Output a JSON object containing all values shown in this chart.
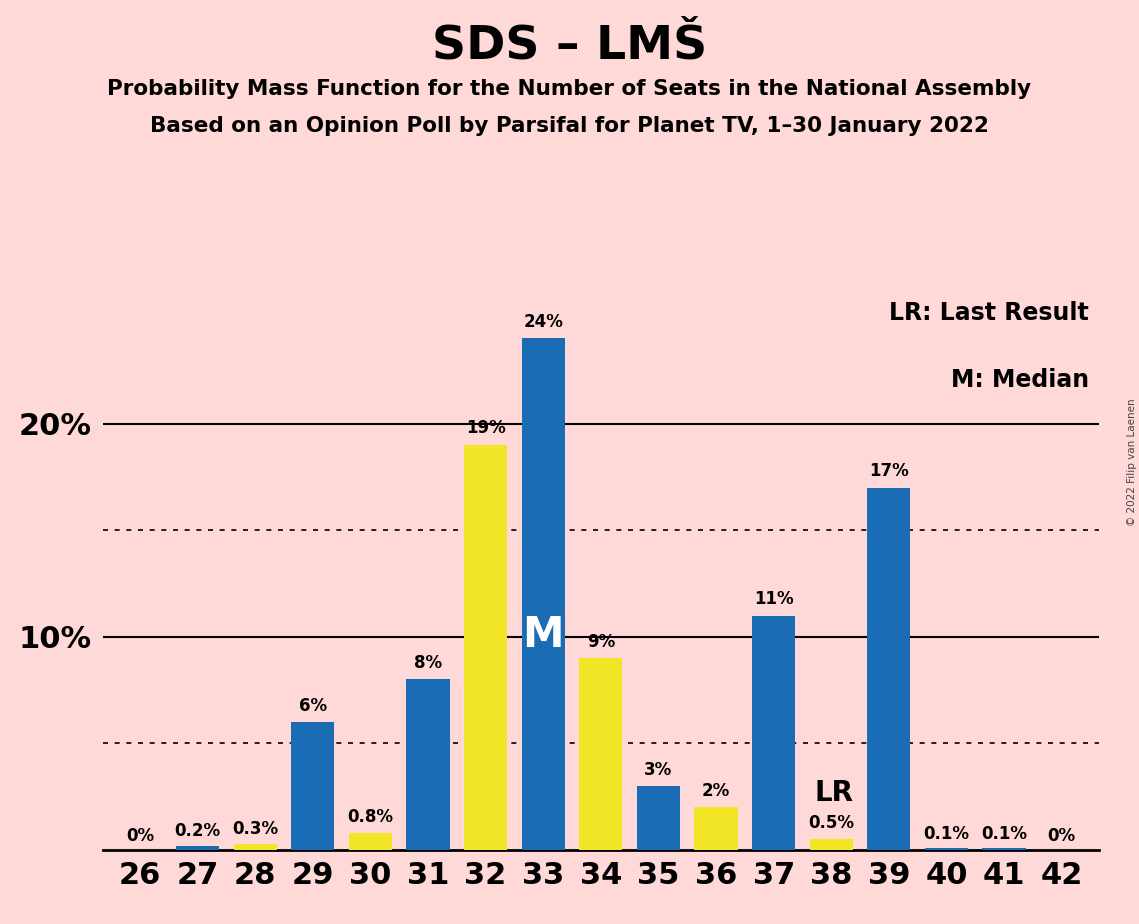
{
  "title": "SDS – LMŠ",
  "subtitle1": "Probability Mass Function for the Number of Seats in the National Assembly",
  "subtitle2": "Based on an Opinion Poll by Parsifal for Planet TV, 1–30 January 2022",
  "copyright": "© 2022 Filip van Laenen",
  "seats": [
    26,
    27,
    28,
    29,
    30,
    31,
    32,
    33,
    34,
    35,
    36,
    37,
    38,
    39,
    40,
    41,
    42
  ],
  "probabilities": [
    0.0,
    0.2,
    0.3,
    6.0,
    0.8,
    8.0,
    19.0,
    24.0,
    9.0,
    3.0,
    2.0,
    11.0,
    0.5,
    17.0,
    0.1,
    0.1,
    0.0
  ],
  "labels": [
    "0%",
    "0.2%",
    "0.3%",
    "6%",
    "0.8%",
    "8%",
    "19%",
    "24%",
    "9%",
    "3%",
    "2%",
    "11%",
    "0.5%",
    "17%",
    "0.1%",
    "0.1%",
    "0%"
  ],
  "bar_colors": [
    "#1a6cb5",
    "#1a6cb5",
    "#f2e526",
    "#1a6cb5",
    "#f2e526",
    "#1a6cb5",
    "#f2e526",
    "#1a6cb5",
    "#f2e526",
    "#1a6cb5",
    "#f2e526",
    "#1a6cb5",
    "#f2e526",
    "#1a6cb5",
    "#1a6cb5",
    "#1a6cb5",
    "#1a6cb5"
  ],
  "background_color": "#ffd8d8",
  "median_seat": 33,
  "lr_seat": 38,
  "legend_lr": "LR: Last Result",
  "legend_m": "M: Median",
  "ylim": [
    0,
    26
  ],
  "solid_gridlines": [
    10.0,
    20.0
  ],
  "dotted_gridlines": [
    5.0,
    15.0
  ],
  "bar_width": 0.75
}
